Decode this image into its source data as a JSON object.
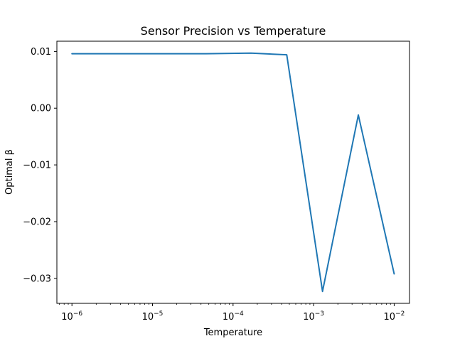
{
  "chart_data": {
    "type": "line",
    "title": "Sensor Precision vs Temperature",
    "xlabel": "Temperature",
    "ylabel": "Optimal β",
    "xscale": "log",
    "xlim": [
      6.5e-07,
      0.0155
    ],
    "ylim": [
      -0.0344,
      0.0118
    ],
    "grid": false,
    "legend": "none",
    "x_ticks": [
      {
        "value": 1e-06,
        "base": "10",
        "exp": "−6"
      },
      {
        "value": 1e-05,
        "base": "10",
        "exp": "−5"
      },
      {
        "value": 0.0001,
        "base": "10",
        "exp": "−4"
      },
      {
        "value": 0.001,
        "base": "10",
        "exp": "−3"
      },
      {
        "value": 0.01,
        "base": "10",
        "exp": "−2"
      }
    ],
    "y_ticks": [
      {
        "value": 0.01,
        "label": "0.01"
      },
      {
        "value": 0.0,
        "label": "0.00"
      },
      {
        "value": -0.01,
        "label": "−0.01"
      },
      {
        "value": -0.02,
        "label": "−0.02"
      },
      {
        "value": -0.03,
        "label": "−0.03"
      }
    ],
    "series": [
      {
        "color": "#1f77b4",
        "x": [
          1e-06,
          3.6e-06,
          1.29e-05,
          4.64e-05,
          0.000167,
          0.000464,
          0.00129,
          0.00359,
          0.01
        ],
        "y": [
          0.0096,
          0.0096,
          0.0096,
          0.0096,
          0.0097,
          0.0094,
          -0.0323,
          -0.0012,
          -0.0292
        ]
      }
    ]
  }
}
